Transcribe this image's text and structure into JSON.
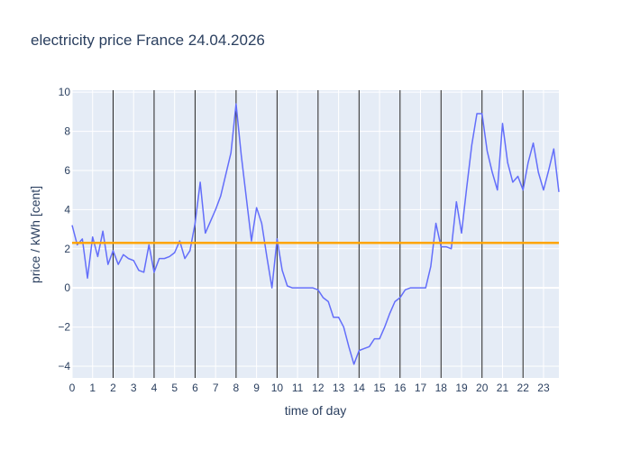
{
  "chart_data": {
    "type": "line",
    "title": "electricity price France 24.04.2026",
    "xlabel": "time of day",
    "ylabel": "price / kWh [cent]",
    "xlim": [
      0,
      23.75
    ],
    "ylim": [
      -4.6,
      10.1
    ],
    "x_ticks": [
      0,
      1,
      2,
      3,
      4,
      5,
      6,
      7,
      8,
      9,
      10,
      11,
      12,
      13,
      14,
      15,
      16,
      17,
      18,
      19,
      20,
      21,
      22,
      23
    ],
    "x_tick_labels": [
      "0",
      "1",
      "2",
      "3",
      "4",
      "5",
      "6",
      "7",
      "8",
      "9",
      "10",
      "11",
      "12",
      "13",
      "14",
      "15",
      "16",
      "17",
      "18",
      "19",
      "20",
      "21",
      "22",
      "23"
    ],
    "y_ticks": [
      -4,
      -2,
      0,
      2,
      4,
      6,
      8,
      10
    ],
    "y_tick_labels": [
      "−4",
      "−2",
      "0",
      "2",
      "4",
      "6",
      "8",
      "10"
    ],
    "vertical_markers": [
      2,
      4,
      6,
      8,
      10,
      12,
      14,
      16,
      18,
      20,
      22
    ],
    "grid": true,
    "series": [
      {
        "color": "#636efa",
        "x": [
          0,
          0.25,
          0.5,
          0.75,
          1,
          1.25,
          1.5,
          1.75,
          2,
          2.25,
          2.5,
          2.75,
          3,
          3.25,
          3.5,
          3.75,
          4,
          4.25,
          4.5,
          4.75,
          5,
          5.25,
          5.5,
          5.75,
          6,
          6.25,
          6.5,
          6.75,
          7,
          7.25,
          7.5,
          7.75,
          8,
          8.25,
          8.5,
          8.75,
          9,
          9.25,
          9.5,
          9.75,
          10,
          10.25,
          10.5,
          10.75,
          11,
          11.25,
          11.5,
          11.75,
          12,
          12.25,
          12.5,
          12.75,
          13,
          13.25,
          13.5,
          13.75,
          14,
          14.25,
          14.5,
          14.75,
          15,
          15.25,
          15.5,
          15.75,
          16,
          16.25,
          16.5,
          16.75,
          17,
          17.25,
          17.5,
          17.75,
          18,
          18.25,
          18.5,
          18.75,
          19,
          19.25,
          19.5,
          19.75,
          20,
          20.25,
          20.5,
          20.75,
          21,
          21.25,
          21.5,
          21.75,
          22,
          22.25,
          22.5,
          22.75,
          23,
          23.25,
          23.5,
          23.75
        ],
        "values": [
          3.2,
          2.2,
          2.5,
          0.5,
          2.6,
          1.6,
          2.9,
          1.2,
          1.9,
          1.2,
          1.7,
          1.5,
          1.4,
          0.9,
          0.8,
          2.2,
          0.8,
          1.5,
          1.5,
          1.6,
          1.8,
          2.4,
          1.5,
          1.9,
          3.3,
          5.4,
          2.8,
          3.4,
          4.0,
          4.7,
          5.8,
          6.9,
          9.4,
          6.8,
          4.6,
          2.4,
          4.1,
          3.3,
          1.6,
          0.0,
          2.5,
          0.9,
          0.1,
          0.0,
          0.0,
          0.0,
          0.0,
          0.0,
          -0.1,
          -0.5,
          -0.7,
          -1.5,
          -1.5,
          -2.0,
          -3.0,
          -3.9,
          -3.2,
          -3.1,
          -3.0,
          -2.6,
          -2.6,
          -2.0,
          -1.3,
          -0.7,
          -0.5,
          -0.1,
          0.0,
          0.0,
          0.0,
          0.0,
          1.1,
          3.3,
          2.1,
          2.1,
          2.0,
          4.4,
          2.8,
          5.1,
          7.3,
          8.9,
          8.9,
          7.0,
          5.9,
          5.0,
          8.4,
          6.4,
          5.4,
          5.7,
          5.0,
          6.4,
          7.4,
          5.9,
          5.0,
          6.0,
          7.1,
          4.9
        ]
      },
      {
        "color": "#ffa500",
        "x": [
          0,
          23.75
        ],
        "values": [
          2.3,
          2.3
        ]
      }
    ]
  }
}
